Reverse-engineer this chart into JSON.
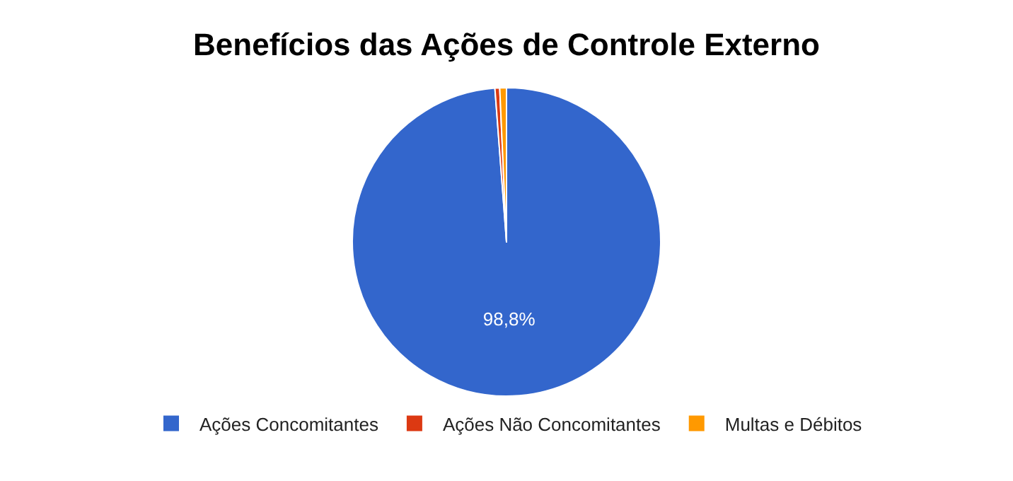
{
  "chart_data": {
    "type": "pie",
    "title": "Benefícios das Ações de Controle Externo",
    "categories": [
      "Ações Concomitantes",
      "Ações Não Concomitantes",
      "Multas e Débitos"
    ],
    "values": [
      98.8,
      0.5,
      0.7
    ],
    "colors": [
      "#3366cc",
      "#dc3912",
      "#ff9900"
    ],
    "value_labels": [
      "98,8%",
      null,
      null
    ],
    "legend": "bottom"
  }
}
